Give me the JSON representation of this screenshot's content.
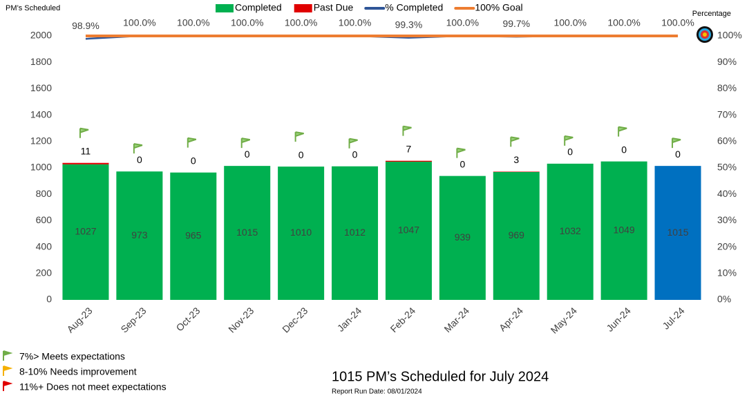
{
  "chart_data": {
    "type": "bar",
    "stacked": true,
    "y_label": "PM’s Scheduled",
    "y2_label": "Percentage",
    "categories": [
      "Aug-23",
      "Sep-23",
      "Oct-23",
      "Nov-23",
      "Dec-23",
      "Jan-24",
      "Feb-24",
      "Mar-24",
      "Apr-24",
      "May-24",
      "Jun-24",
      "Jul-24"
    ],
    "series": [
      {
        "name": "Completed",
        "color": "#00b050",
        "colors": [
          "#00b050",
          "#00b050",
          "#00b050",
          "#00b050",
          "#00b050",
          "#00b050",
          "#00b050",
          "#00b050",
          "#00b050",
          "#00b050",
          "#00b050",
          "#0070c0"
        ],
        "values": [
          1027,
          973,
          965,
          1015,
          1010,
          1012,
          1047,
          939,
          969,
          1032,
          1049,
          1015
        ]
      },
      {
        "name": "Past Due",
        "color": "#e00000",
        "values": [
          11,
          0,
          0,
          0,
          0,
          0,
          7,
          0,
          3,
          0,
          0,
          0
        ]
      },
      {
        "name": "% Completed",
        "type": "line",
        "axis": "y2",
        "color": "#2f5597",
        "values": [
          98.9,
          100,
          100,
          100,
          100,
          100,
          99.3,
          100,
          99.7,
          100,
          100,
          100
        ],
        "value_labels": [
          "98.9%",
          "100.0%",
          "100.0%",
          "100.0%",
          "100.0%",
          "100.0%",
          "99.3%",
          "100.0%",
          "99.7%",
          "100.0%",
          "100.0%",
          "100.0%"
        ]
      },
      {
        "name": "100% Goal",
        "type": "line",
        "axis": "y2",
        "color": "#ed7d31",
        "values": [
          100,
          100,
          100,
          100,
          100,
          100,
          100,
          100,
          100,
          100,
          100,
          100
        ]
      }
    ],
    "ylim": [
      0,
      2000
    ],
    "yticks": [
      0,
      200,
      400,
      600,
      800,
      1000,
      1200,
      1400,
      1600,
      1800,
      2000
    ],
    "y2lim": [
      0,
      100
    ],
    "y2ticks": [
      {
        "value": 0,
        "label": "0%"
      },
      {
        "value": 10,
        "label": "10%"
      },
      {
        "value": 20,
        "label": "20%"
      },
      {
        "value": 30,
        "label": "30%"
      },
      {
        "value": 40,
        "label": "40%"
      },
      {
        "value": 50,
        "label": "50%"
      },
      {
        "value": 60,
        "label": "60%"
      },
      {
        "value": 70,
        "label": "70%"
      },
      {
        "value": 80,
        "label": "80%"
      },
      {
        "value": 90,
        "label": "90%"
      },
      {
        "value": 100,
        "label": "100%"
      }
    ],
    "key": [
      "7%> Meets expectations",
      "8-10% Needs improvement",
      "11%+  Does not meet expectations"
    ],
    "summary": "1015 PM’s Scheduled for July 2024",
    "run_date": "Report Run Date: 08/01/2024"
  }
}
